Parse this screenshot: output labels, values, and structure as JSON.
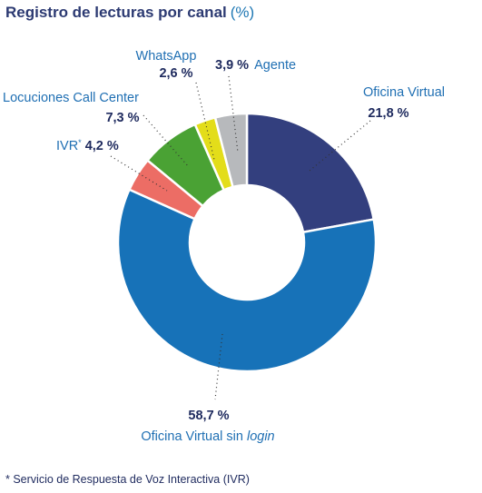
{
  "chart_data": {
    "type": "pie",
    "title": "Registro de lecturas por canal",
    "unit": "(%)",
    "donut": true,
    "slices": [
      {
        "label": "Oficina Virtual",
        "value": 21.8,
        "value_label": "21,8 %",
        "color": "#333f7e"
      },
      {
        "label": "Oficina Virtual sin",
        "label_italic": "login",
        "value": 58.7,
        "value_label": "58,7 %",
        "color": "#1772b8"
      },
      {
        "label": "IVR",
        "label_sup": "*",
        "value": 4.2,
        "value_label": "4,2 %",
        "color": "#ec6d65"
      },
      {
        "label": "Locuciones Call Center",
        "value": 7.3,
        "value_label": "7,3 %",
        "color": "#4aa234"
      },
      {
        "label": "WhatsApp",
        "value": 2.6,
        "value_label": "2,6 %",
        "color": "#e3dd1a"
      },
      {
        "label": "Agente",
        "value": 3.9,
        "value_label": "3,9 %",
        "color": "#b7b9bc"
      }
    ]
  },
  "footnote": "* Servicio de Respuesta de Voz Interactiva (IVR)"
}
